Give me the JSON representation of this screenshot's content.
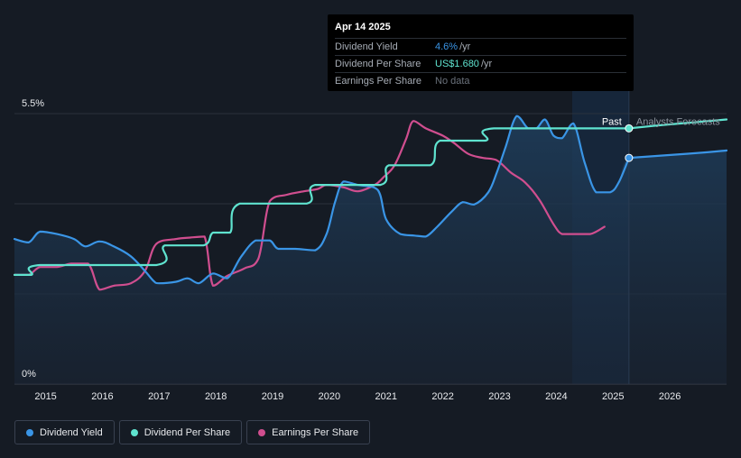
{
  "tooltip": {
    "date": "Apr 14 2025",
    "rows": [
      {
        "label": "Dividend Yield",
        "value": "4.6%",
        "unit": "/yr",
        "color_class": "blue"
      },
      {
        "label": "Dividend Per Share",
        "value": "US$1.680",
        "unit": "/yr",
        "color_class": "teal"
      },
      {
        "label": "Earnings Per Share",
        "value": "No data",
        "unit": "",
        "color_class": "none"
      }
    ]
  },
  "labels": {
    "past": "Past",
    "forecast": "Analysts Forecasts"
  },
  "legend": [
    {
      "label": "Dividend Yield",
      "color": "#3a95e6"
    },
    {
      "label": "Dividend Per Share",
      "color": "#5fe3cf"
    },
    {
      "label": "Earnings Per Share",
      "color": "#d04e8f"
    }
  ],
  "chart_data": {
    "type": "line",
    "x_ticks": [
      "2015",
      "2016",
      "2017",
      "2018",
      "2019",
      "2020",
      "2021",
      "2022",
      "2023",
      "2024",
      "2025",
      "2026"
    ],
    "y_ticks": [
      "5.5%",
      "0%"
    ],
    "xlim": [
      2014.45,
      2027.0
    ],
    "ylim": [
      0,
      5.5
    ],
    "today": 2025.28,
    "forecast_region_start": 2024.28,
    "colors": {
      "yield": "#3a95e6",
      "dps": "#5fe3cf",
      "eps": "#d04e8f"
    },
    "series": [
      {
        "name": "Dividend Yield",
        "key": "yield",
        "values": [
          [
            2014.45,
            2.95
          ],
          [
            2014.7,
            2.88
          ],
          [
            2014.9,
            3.1
          ],
          [
            2015.2,
            3.05
          ],
          [
            2015.5,
            2.95
          ],
          [
            2015.7,
            2.8
          ],
          [
            2015.95,
            2.9
          ],
          [
            2016.2,
            2.8
          ],
          [
            2016.5,
            2.6
          ],
          [
            2016.75,
            2.3
          ],
          [
            2016.9,
            2.1
          ],
          [
            2017.0,
            2.05
          ],
          [
            2017.3,
            2.08
          ],
          [
            2017.5,
            2.15
          ],
          [
            2017.7,
            2.05
          ],
          [
            2017.95,
            2.25
          ],
          [
            2018.2,
            2.15
          ],
          [
            2018.45,
            2.6
          ],
          [
            2018.7,
            2.92
          ],
          [
            2018.95,
            2.92
          ],
          [
            2019.1,
            2.75
          ],
          [
            2019.4,
            2.75
          ],
          [
            2019.75,
            2.72
          ],
          [
            2019.95,
            3.05
          ],
          [
            2020.1,
            3.7
          ],
          [
            2020.25,
            4.12
          ],
          [
            2020.5,
            4.05
          ],
          [
            2020.85,
            3.95
          ],
          [
            2021.0,
            3.35
          ],
          [
            2021.25,
            3.05
          ],
          [
            2021.5,
            3.02
          ],
          [
            2021.7,
            3.0
          ],
          [
            2021.9,
            3.2
          ],
          [
            2022.15,
            3.5
          ],
          [
            2022.35,
            3.7
          ],
          [
            2022.55,
            3.65
          ],
          [
            2022.8,
            3.9
          ],
          [
            2022.95,
            4.3
          ],
          [
            2023.1,
            4.8
          ],
          [
            2023.3,
            5.45
          ],
          [
            2023.5,
            5.2
          ],
          [
            2023.65,
            5.2
          ],
          [
            2023.8,
            5.38
          ],
          [
            2023.95,
            5.05
          ],
          [
            2024.1,
            5.0
          ],
          [
            2024.3,
            5.3
          ],
          [
            2024.5,
            4.5
          ],
          [
            2024.7,
            3.9
          ],
          [
            2024.95,
            3.9
          ],
          [
            2025.1,
            4.1
          ],
          [
            2025.28,
            4.6
          ]
        ],
        "forecast": [
          [
            2025.28,
            4.6
          ],
          [
            2025.9,
            4.65
          ],
          [
            2026.5,
            4.7
          ],
          [
            2027.0,
            4.75
          ]
        ]
      },
      {
        "name": "Dividend Per Share",
        "key": "dps",
        "values": [
          [
            2014.45,
            2.22
          ],
          [
            2014.75,
            2.22
          ],
          [
            2014.9,
            2.42
          ],
          [
            2016.95,
            2.42
          ],
          [
            2017.1,
            2.82
          ],
          [
            2017.78,
            2.82
          ],
          [
            2017.95,
            3.08
          ],
          [
            2018.25,
            3.08
          ],
          [
            2018.42,
            3.67
          ],
          [
            2019.6,
            3.67
          ],
          [
            2019.75,
            4.05
          ],
          [
            2020.9,
            4.05
          ],
          [
            2021.05,
            4.45
          ],
          [
            2021.78,
            4.45
          ],
          [
            2021.95,
            4.95
          ],
          [
            2022.75,
            4.95
          ],
          [
            2022.9,
            5.2
          ],
          [
            2025.28,
            5.2
          ]
        ],
        "forecast": [
          [
            2025.28,
            5.2
          ],
          [
            2025.9,
            5.27
          ],
          [
            2026.5,
            5.33
          ],
          [
            2027.0,
            5.38
          ]
        ]
      },
      {
        "name": "Earnings Per Share",
        "key": "eps",
        "values": [
          [
            2014.45,
            2.22
          ],
          [
            2014.7,
            2.22
          ],
          [
            2014.9,
            2.38
          ],
          [
            2015.2,
            2.38
          ],
          [
            2015.45,
            2.45
          ],
          [
            2015.75,
            2.45
          ],
          [
            2015.95,
            1.92
          ],
          [
            2016.2,
            2.0
          ],
          [
            2016.5,
            2.05
          ],
          [
            2016.75,
            2.3
          ],
          [
            2016.95,
            2.85
          ],
          [
            2017.3,
            2.95
          ],
          [
            2017.55,
            2.98
          ],
          [
            2017.8,
            3.0
          ],
          [
            2017.95,
            2.0
          ],
          [
            2018.2,
            2.2
          ],
          [
            2018.5,
            2.35
          ],
          [
            2018.75,
            2.55
          ],
          [
            2018.95,
            3.72
          ],
          [
            2019.25,
            3.85
          ],
          [
            2019.55,
            3.92
          ],
          [
            2019.8,
            3.97
          ],
          [
            2019.95,
            4.05
          ],
          [
            2020.25,
            4.0
          ],
          [
            2020.5,
            3.92
          ],
          [
            2020.8,
            4.05
          ],
          [
            2020.95,
            4.2
          ],
          [
            2021.15,
            4.45
          ],
          [
            2021.35,
            4.98
          ],
          [
            2021.48,
            5.35
          ],
          [
            2021.7,
            5.2
          ],
          [
            2022.0,
            5.05
          ],
          [
            2022.2,
            4.9
          ],
          [
            2022.45,
            4.68
          ],
          [
            2022.7,
            4.6
          ],
          [
            2022.95,
            4.55
          ],
          [
            2023.2,
            4.3
          ],
          [
            2023.45,
            4.1
          ],
          [
            2023.7,
            3.75
          ],
          [
            2023.95,
            3.25
          ],
          [
            2024.1,
            3.05
          ],
          [
            2024.3,
            3.05
          ],
          [
            2024.6,
            3.05
          ],
          [
            2024.85,
            3.2
          ]
        ]
      }
    ]
  }
}
